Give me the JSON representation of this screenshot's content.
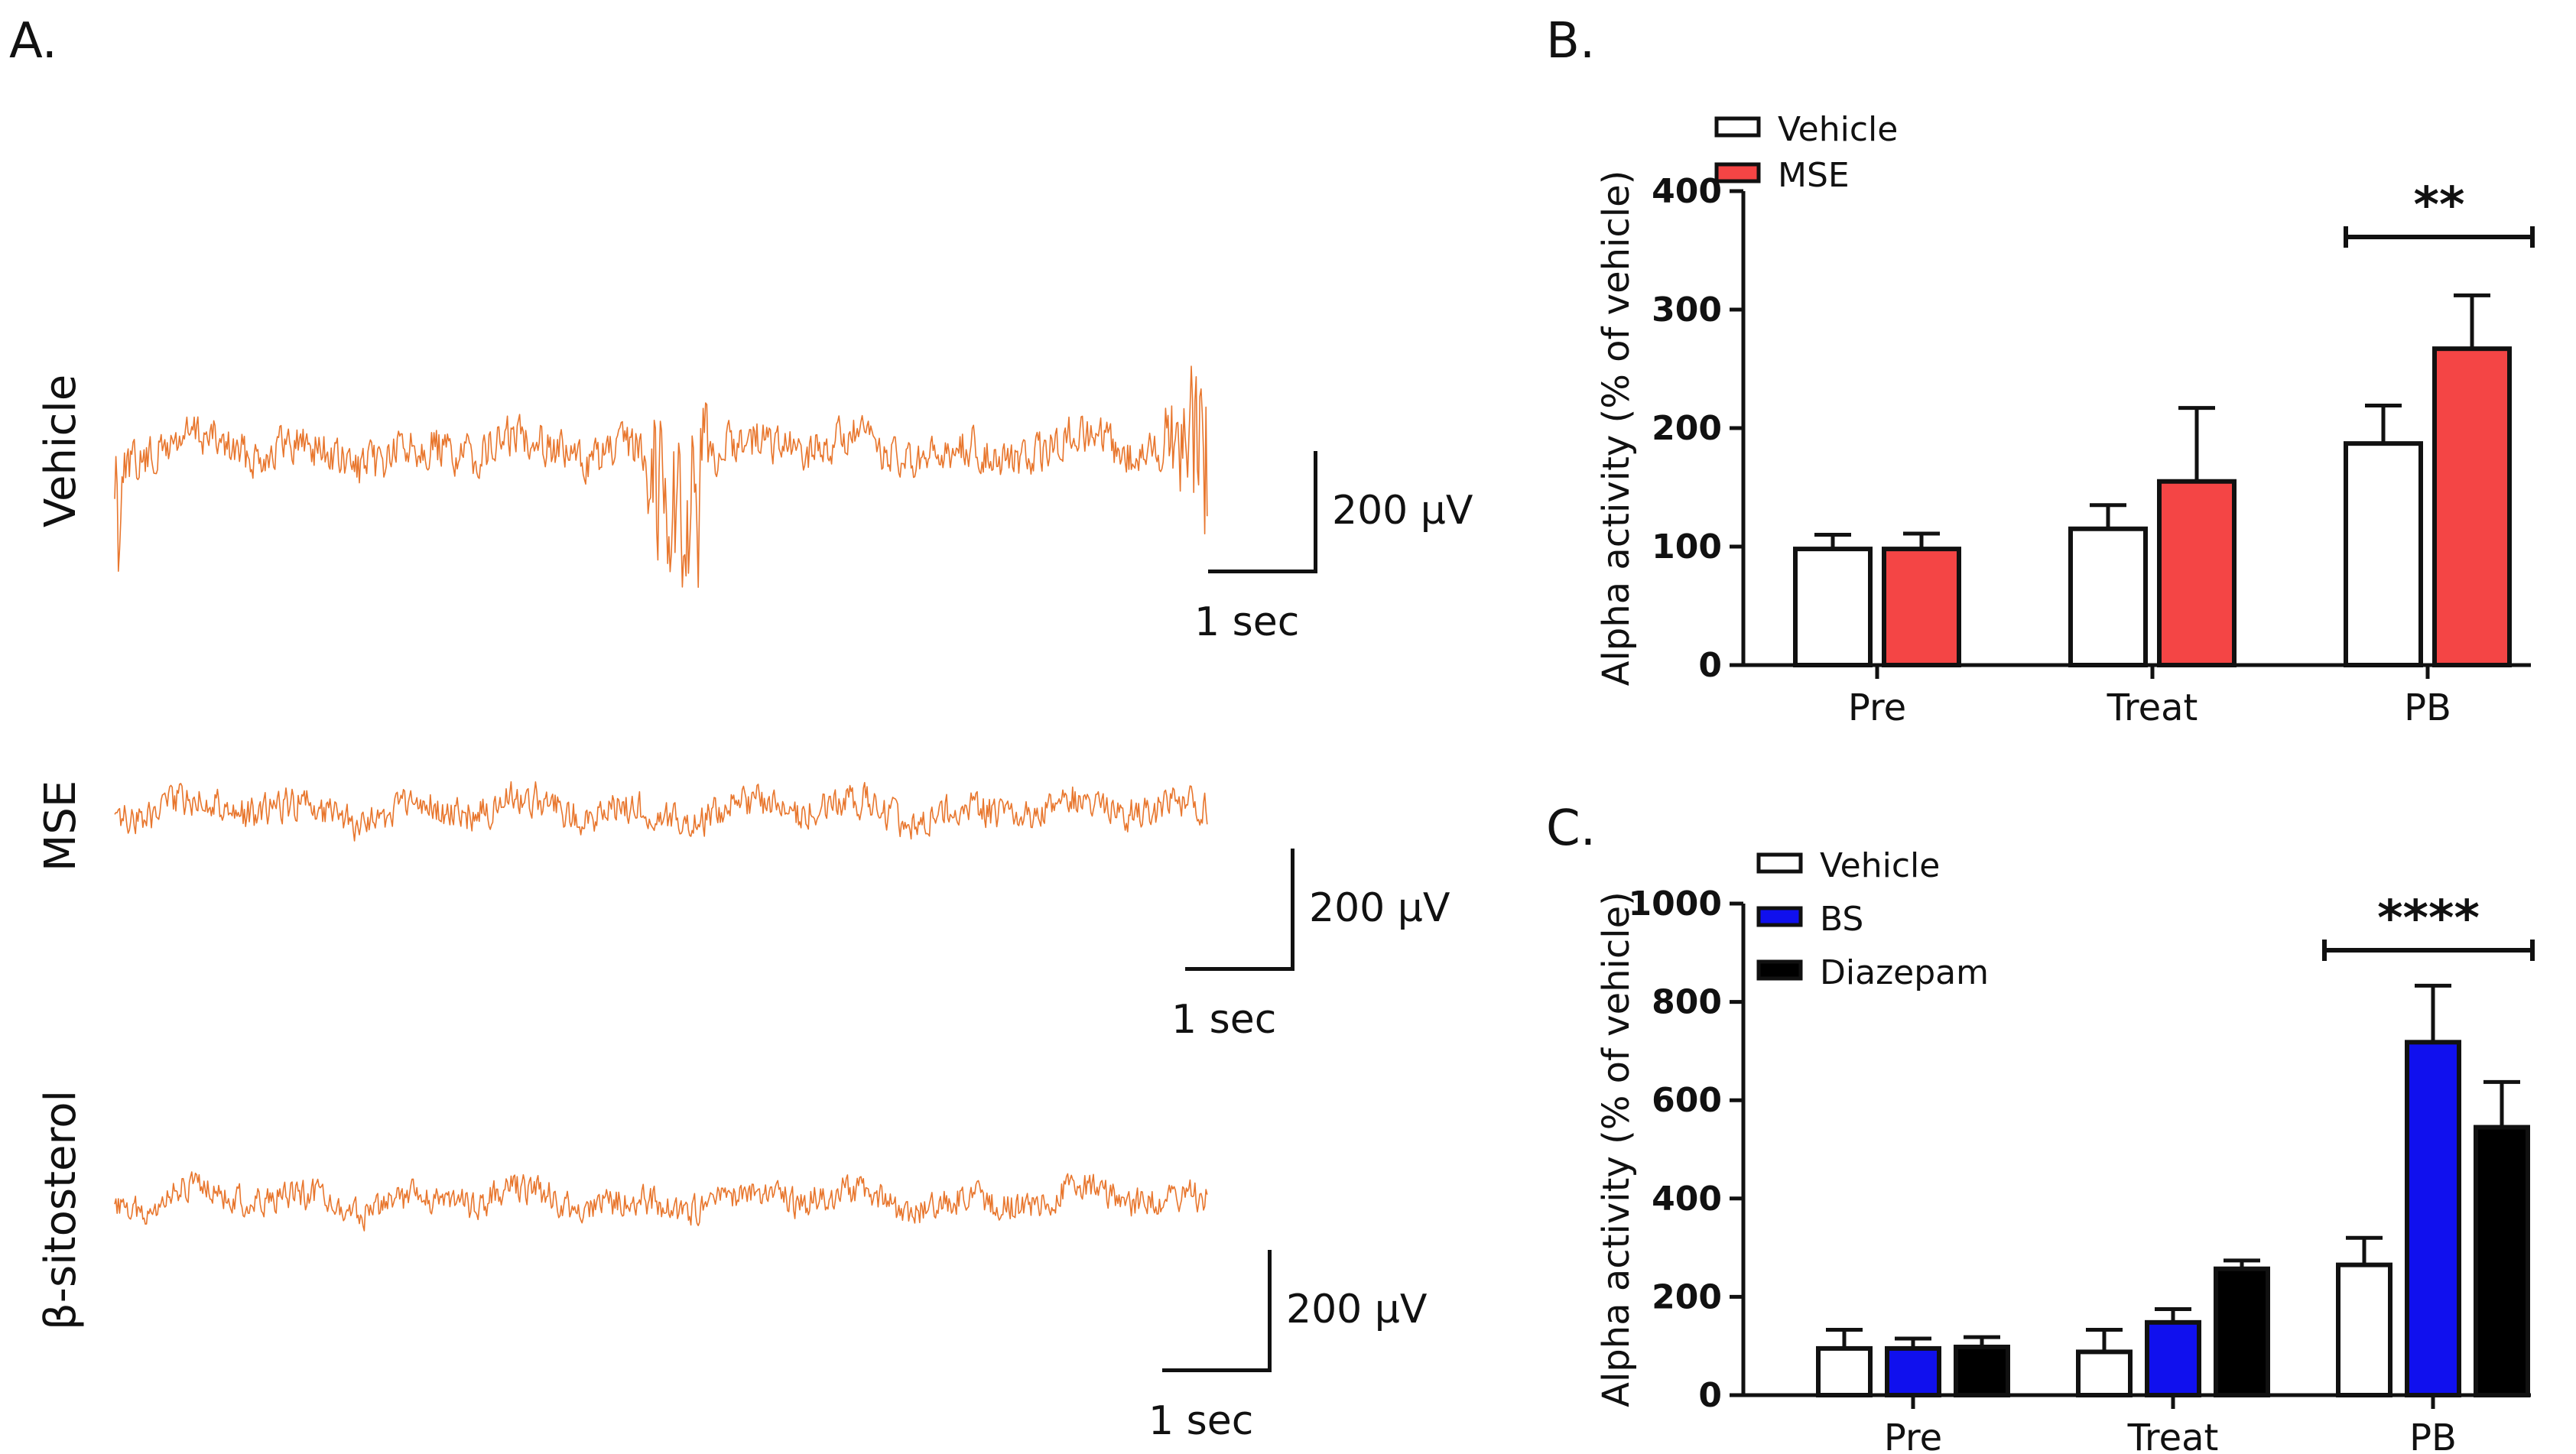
{
  "panel_a": {
    "letter": "A.",
    "trace_color": "#e8762d",
    "rows": [
      {
        "label": "Vehicle",
        "scale_amplitude": "200 μV",
        "scale_time": "1 sec"
      },
      {
        "label": "MSE",
        "scale_amplitude": "200 μV",
        "scale_time": "1 sec"
      },
      {
        "label": "β-sitosterol",
        "scale_amplitude": "200 μV",
        "scale_time": "1 sec"
      }
    ]
  },
  "chart_data": [
    {
      "panel": "B.",
      "type": "bar",
      "ylabel": "Alpha activity (% of vehicle)",
      "xlabel": "",
      "ylim": [
        0,
        400
      ],
      "yticks": [
        0,
        100,
        200,
        300,
        400
      ],
      "categories": [
        "Pre",
        "Treat",
        "PB"
      ],
      "series": [
        {
          "name": "Vehicle",
          "color": "#ffffff",
          "values": [
            98,
            115,
            187
          ],
          "errors": [
            12,
            20,
            32
          ]
        },
        {
          "name": "MSE",
          "color": "#f44545",
          "values": [
            98,
            155,
            267
          ],
          "errors": [
            13,
            62,
            45
          ]
        }
      ],
      "significance": {
        "category": "PB",
        "label": "**"
      },
      "legend": "top-left"
    },
    {
      "panel": "C.",
      "type": "bar",
      "ylabel": "Alpha activity (% of vehicle)",
      "xlabel": "",
      "ylim": [
        0,
        1000
      ],
      "yticks": [
        0,
        200,
        400,
        600,
        800,
        1000
      ],
      "categories": [
        "Pre",
        "Treat",
        "PB"
      ],
      "series": [
        {
          "name": "Vehicle",
          "color": "#ffffff",
          "values": [
            95,
            88,
            265
          ],
          "errors": [
            38,
            45,
            55
          ]
        },
        {
          "name": "BS",
          "color": "#1010ee",
          "values": [
            95,
            148,
            718
          ],
          "errors": [
            20,
            27,
            115
          ]
        },
        {
          "name": "Diazepam",
          "color": "#000000",
          "values": [
            98,
            257,
            545
          ],
          "errors": [
            20,
            17,
            92
          ]
        }
      ],
      "significance": {
        "category": "PB",
        "label": "****"
      },
      "legend": "top-left"
    }
  ]
}
